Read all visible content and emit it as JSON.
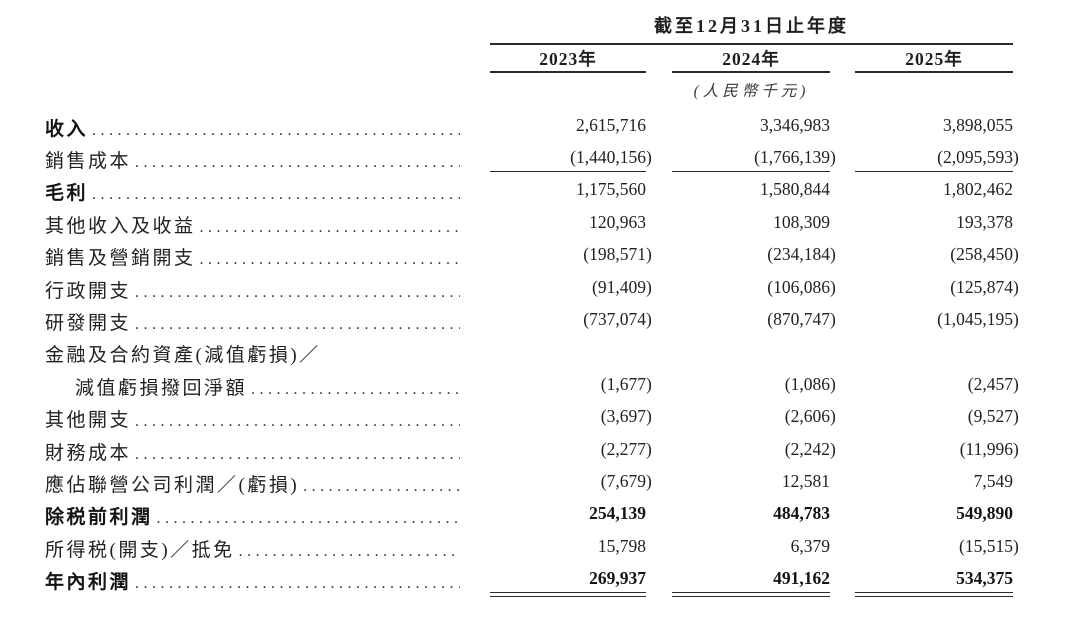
{
  "table": {
    "period_header": "截至12月31日止年度",
    "year_columns": [
      "2023年",
      "2024年",
      "2025年"
    ],
    "unit_note": "(人民幣千元)",
    "rows": [
      {
        "label": "收入",
        "bold_label": true,
        "bold_values": false,
        "indent": false,
        "dots": true,
        "rule_below": "none",
        "values": [
          "2,615,716",
          "3,346,983",
          "3,898,055"
        ]
      },
      {
        "label": "銷售成本",
        "bold_label": false,
        "bold_values": false,
        "indent": false,
        "dots": true,
        "rule_below": "single",
        "values": [
          "(1,440,156)",
          "(1,766,139)",
          "(2,095,593)"
        ]
      },
      {
        "label": "毛利",
        "bold_label": true,
        "bold_values": false,
        "indent": false,
        "dots": true,
        "rule_below": "none",
        "values": [
          "1,175,560",
          "1,580,844",
          "1,802,462"
        ]
      },
      {
        "label": "其他收入及收益",
        "bold_label": false,
        "bold_values": false,
        "indent": false,
        "dots": true,
        "rule_below": "none",
        "values": [
          "120,963",
          "108,309",
          "193,378"
        ]
      },
      {
        "label": "銷售及營銷開支",
        "bold_label": false,
        "bold_values": false,
        "indent": false,
        "dots": true,
        "rule_below": "none",
        "values": [
          "(198,571)",
          "(234,184)",
          "(258,450)"
        ]
      },
      {
        "label": "行政開支",
        "bold_label": false,
        "bold_values": false,
        "indent": false,
        "dots": true,
        "rule_below": "none",
        "values": [
          "(91,409)",
          "(106,086)",
          "(125,874)"
        ]
      },
      {
        "label": "研發開支",
        "bold_label": false,
        "bold_values": false,
        "indent": false,
        "dots": true,
        "rule_below": "none",
        "values": [
          "(737,074)",
          "(870,747)",
          "(1,045,195)"
        ]
      },
      {
        "label": "金融及合約資產(減值虧損)／",
        "bold_label": false,
        "bold_values": false,
        "indent": false,
        "dots": false,
        "rule_below": "none",
        "values": [
          "",
          "",
          ""
        ]
      },
      {
        "label": "減值虧損撥回淨額",
        "bold_label": false,
        "bold_values": false,
        "indent": true,
        "dots": true,
        "rule_below": "none",
        "values": [
          "(1,677)",
          "(1,086)",
          "(2,457)"
        ]
      },
      {
        "label": "其他開支",
        "bold_label": false,
        "bold_values": false,
        "indent": false,
        "dots": true,
        "rule_below": "none",
        "values": [
          "(3,697)",
          "(2,606)",
          "(9,527)"
        ]
      },
      {
        "label": "財務成本",
        "bold_label": false,
        "bold_values": false,
        "indent": false,
        "dots": true,
        "rule_below": "none",
        "values": [
          "(2,277)",
          "(2,242)",
          "(11,996)"
        ]
      },
      {
        "label": "應佔聯營公司利潤／(虧損)",
        "bold_label": false,
        "bold_values": false,
        "indent": false,
        "dots": true,
        "rule_below": "none",
        "values": [
          "(7,679)",
          "12,581",
          "7,549"
        ]
      },
      {
        "label": "除税前利潤",
        "bold_label": true,
        "bold_values": true,
        "indent": false,
        "dots": true,
        "rule_below": "none",
        "values": [
          "254,139",
          "484,783",
          "549,890"
        ]
      },
      {
        "label": "所得税(開支)／抵免",
        "bold_label": false,
        "bold_values": false,
        "indent": false,
        "dots": true,
        "rule_below": "none",
        "values": [
          "15,798",
          "6,379",
          "(15,515)"
        ]
      },
      {
        "label": "年內利潤",
        "bold_label": true,
        "bold_values": true,
        "indent": false,
        "dots": true,
        "rule_below": "double",
        "values": [
          "269,937",
          "491,162",
          "534,375"
        ]
      }
    ]
  }
}
